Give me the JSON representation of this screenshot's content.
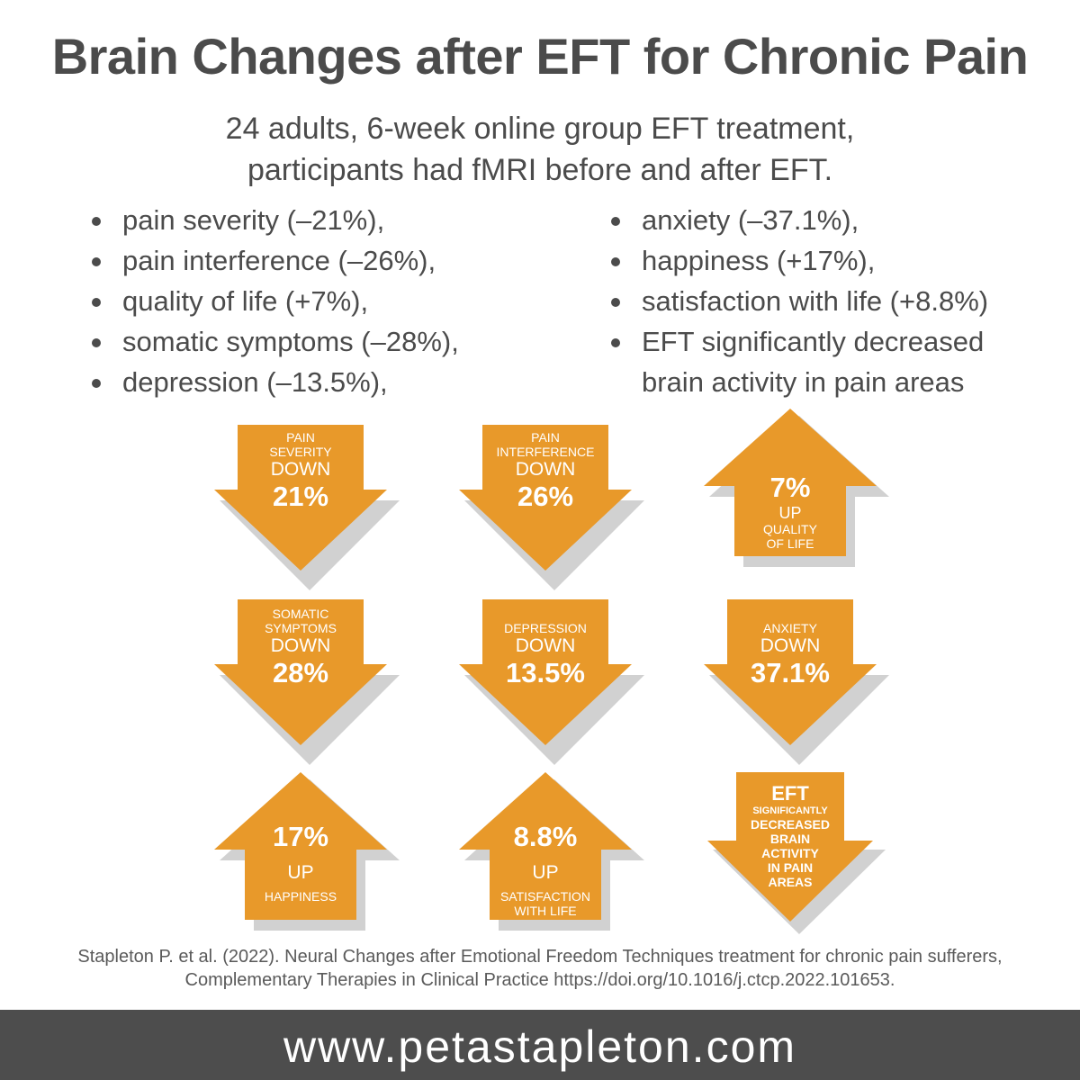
{
  "title": "Brain Changes after EFT for Chronic Pain",
  "subtitle": {
    "line1": "24 adults, 6-week online group EFT treatment,",
    "line2": "participants had fMRI before and after EFT."
  },
  "bullets_left": [
    "pain severity (–21%),",
    "pain interference (–26%),",
    "quality of life (+7%),",
    "somatic symptoms (–28%),",
    "depression (–13.5%),"
  ],
  "bullets_right": [
    "anxiety (–37.1%),",
    "happiness (+17%),",
    "satisfaction with life (+8.8%)",
    "EFT significantly decreased",
    "brain activity in pain areas"
  ],
  "arrows": {
    "pain_severity": {
      "label1": "PAIN",
      "label2": "SEVERITY",
      "dir": "DOWN",
      "value": "21%"
    },
    "pain_interference": {
      "label1": "PAIN",
      "label2": "INTERFERENCE",
      "dir": "DOWN",
      "value": "26%"
    },
    "quality_of_life": {
      "value": "7%",
      "dir": "UP",
      "label1": "QUALITY",
      "label2": "OF LIFE"
    },
    "somatic_symptoms": {
      "label1": "SOMATIC",
      "label2": "SYMPTOMS",
      "dir": "DOWN",
      "value": "28%"
    },
    "depression": {
      "label1": "DEPRESSION",
      "dir": "DOWN",
      "value": "13.5%"
    },
    "anxiety": {
      "label1": "ANXIETY",
      "dir": "DOWN",
      "value": "37.1%"
    },
    "happiness": {
      "value": "17%",
      "dir": "UP",
      "label1": "HAPPINESS"
    },
    "satisfaction": {
      "value": "8.8%",
      "dir": "UP",
      "label1": "SATISFACTION",
      "label2": "WITH LIFE"
    },
    "brain_activity": {
      "line1": "EFT",
      "line2": "SIGNIFICANTLY",
      "line3": "DECREASED",
      "line4": "BRAIN",
      "line5": "ACTIVITY",
      "line6": "IN PAIN",
      "line7": "AREAS"
    }
  },
  "citation": {
    "line1": "Stapleton P. et al. (2022). Neural Changes after Emotional Freedom Techniques treatment for chronic pain sufferers,",
    "line2": "Complementary Therapies in Clinical Practice https://doi.org/10.1016/j.ctcp.2022.101653."
  },
  "footer": "www.petastapleton.com",
  "colors": {
    "arrow": "#e8992a",
    "shadow": "#b3b3b3",
    "footer_bg": "#4d4d4d",
    "text": "#4b4b4b"
  }
}
